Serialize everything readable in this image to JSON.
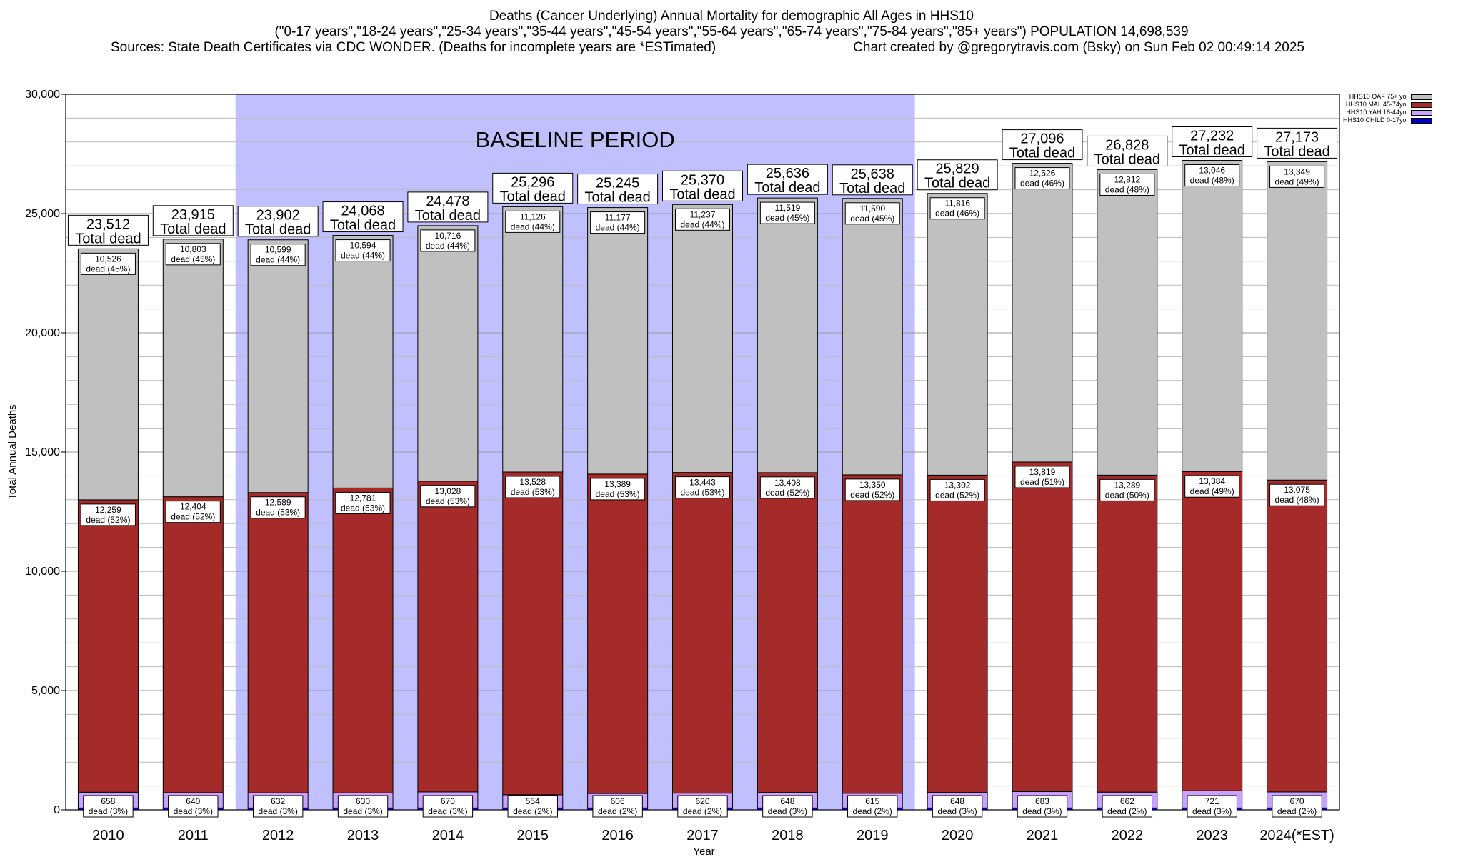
{
  "title": {
    "line1": "Deaths (Cancer Underlying) Annual Mortality for demographic All Ages in HHS10",
    "line2": "(\"0-17 years\",\"18-24 years\",\"25-34 years\",\"35-44 years\",\"45-54 years\",\"55-64 years\",\"65-74 years\",\"75-84 years\",\"85+ years\") POPULATION 14,698,539",
    "sources": "Sources: State Death Certificates via CDC WONDER. (Deaths for incomplete years are *ESTimated)",
    "credit": "Chart created by @gregorytravis.com (Bsky) on Sun Feb 02 00:49:14 2025"
  },
  "colors": {
    "oaf": "#c0c0c0",
    "mal": "#a52a2a",
    "yah": "#c8a2ff",
    "child": "#0000cc",
    "baseline": "#c0c0ff"
  },
  "chart_data": {
    "type": "bar",
    "stacked": true,
    "xlabel": "Year",
    "ylabel": "Total Annual Deaths",
    "ylim": [
      0,
      30000
    ],
    "yticks": [
      "0",
      "5,000",
      "10,000",
      "15,000",
      "20,000",
      "25,000",
      "30,000"
    ],
    "grid": true,
    "legend_position": "top-right",
    "baseline_label": "BASELINE PERIOD",
    "baseline_range": [
      "2012",
      "2019"
    ],
    "total_suffix": "Total dead",
    "categories": [
      "2010",
      "2011",
      "2012",
      "2013",
      "2014",
      "2015",
      "2016",
      "2017",
      "2018",
      "2019",
      "2020",
      "2021",
      "2022",
      "2023",
      "2024(*EST)"
    ],
    "totals": [
      "23,512",
      "23,915",
      "23,902",
      "24,068",
      "24,478",
      "25,296",
      "25,245",
      "25,370",
      "25,636",
      "25,638",
      "25,829",
      "27,096",
      "26,828",
      "27,232",
      "27,173"
    ],
    "series": [
      {
        "name": "HHS10 CHILD 0-17yo",
        "values": [
          80,
          80,
          80,
          80,
          80,
          80,
          80,
          80,
          80,
          80,
          80,
          80,
          80,
          80,
          80
        ]
      },
      {
        "name": "HHS10 YAH 18-44yo",
        "values": [
          658,
          640,
          632,
          630,
          670,
          554,
          606,
          620,
          648,
          615,
          648,
          683,
          662,
          721,
          670
        ],
        "labels": [
          "658",
          "640",
          "632",
          "630",
          "670",
          "554",
          "606",
          "620",
          "648",
          "615",
          "648",
          "683",
          "662",
          "721",
          "670"
        ],
        "pct_labels": [
          "dead (3%)",
          "dead (3%)",
          "dead (3%)",
          "dead (3%)",
          "dead (3%)",
          "dead (2%)",
          "dead (2%)",
          "dead (2%)",
          "dead (3%)",
          "dead (2%)",
          "dead (3%)",
          "dead (3%)",
          "dead (2%)",
          "dead (3%)",
          "dead (2%)"
        ]
      },
      {
        "name": "HHS10 MAL 45-74yo",
        "values": [
          12259,
          12404,
          12589,
          12781,
          13028,
          13528,
          13389,
          13443,
          13408,
          13350,
          13302,
          13819,
          13289,
          13384,
          13075
        ],
        "labels": [
          "12,259",
          "12,404",
          "12,589",
          "12,781",
          "13,028",
          "13,528",
          "13,389",
          "13,443",
          "13,408",
          "13,350",
          "13,302",
          "13,819",
          "13,289",
          "13,384",
          "13,075"
        ],
        "pct_labels": [
          "dead (52%)",
          "dead (52%)",
          "dead (53%)",
          "dead (53%)",
          "dead (53%)",
          "dead (53%)",
          "dead (53%)",
          "dead (53%)",
          "dead (52%)",
          "dead (52%)",
          "dead (52%)",
          "dead (51%)",
          "dead (50%)",
          "dead (49%)",
          "dead (48%)"
        ]
      },
      {
        "name": "HHS10 OAF 75+ yo",
        "values": [
          10526,
          10803,
          10599,
          10594,
          10716,
          11126,
          11177,
          11237,
          11519,
          11590,
          11816,
          12526,
          12812,
          13046,
          13349
        ],
        "labels": [
          "10,526",
          "10,803",
          "10,599",
          "10,594",
          "10,716",
          "11,126",
          "11,177",
          "11,237",
          "11,519",
          "11,590",
          "11,816",
          "12,526",
          "12,812",
          "13,046",
          "13,349"
        ],
        "pct_labels": [
          "dead (45%)",
          "dead (45%)",
          "dead (44%)",
          "dead (44%)",
          "dead (44%)",
          "dead (44%)",
          "dead (44%)",
          "dead (44%)",
          "dead (45%)",
          "dead (45%)",
          "dead (46%)",
          "dead (46%)",
          "dead (48%)",
          "dead (48%)",
          "dead (49%)"
        ]
      }
    ],
    "total_values": [
      23512,
      23915,
      23902,
      24068,
      24478,
      25296,
      25245,
      25370,
      25636,
      25638,
      25829,
      27096,
      26828,
      27232,
      27173
    ]
  }
}
